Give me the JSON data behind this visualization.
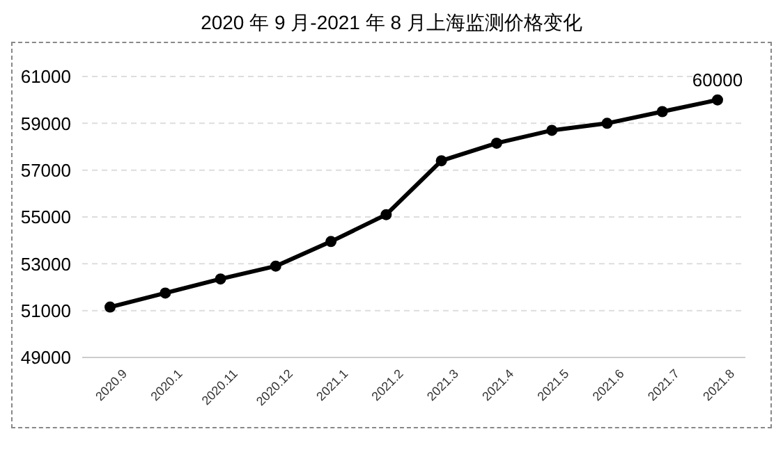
{
  "chart_data": {
    "type": "line",
    "title": "2020 年 9 月-2021 年 8 月上海监测价格变化",
    "categories": [
      "2020.9",
      "2020.1",
      "2020.11",
      "2020.12",
      "2021.1",
      "2021.2",
      "2021.3",
      "2021.4",
      "2021.5",
      "2021.6",
      "2021.7",
      "2021.8"
    ],
    "series": [
      {
        "color": "#000000",
        "values": [
          51150,
          51750,
          52350,
          52900,
          53950,
          55100,
          57400,
          58150,
          58700,
          59000,
          59500,
          60000
        ],
        "value_labels": [
          null,
          null,
          null,
          null,
          null,
          null,
          null,
          null,
          null,
          null,
          null,
          "60000"
        ]
      }
    ],
    "ylim": [
      49000,
      61000
    ],
    "yticks": [
      49000,
      51000,
      53000,
      55000,
      57000,
      59000,
      61000
    ],
    "grid": "y",
    "marker": "circle",
    "line_style": "solid",
    "legend": false
  }
}
